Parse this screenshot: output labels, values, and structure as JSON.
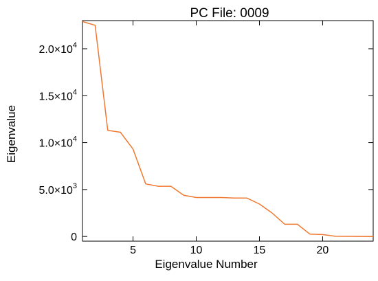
{
  "chart_data": {
    "type": "line",
    "title": "PC File: 0009",
    "xlabel": "Eigenvalue Number",
    "ylabel": "Eigenvalue",
    "xlim": [
      1,
      24
    ],
    "ylim": [
      -500,
      23000
    ],
    "x_ticks": [
      {
        "value": 5,
        "label": "5"
      },
      {
        "value": 10,
        "label": "10"
      },
      {
        "value": 15,
        "label": "15"
      },
      {
        "value": 20,
        "label": "20"
      }
    ],
    "y_ticks": [
      {
        "value": 0,
        "mantissa": "0",
        "exponent": ""
      },
      {
        "value": 5000,
        "mantissa": "5.0×10",
        "exponent": "3"
      },
      {
        "value": 10000,
        "mantissa": "1.0×10",
        "exponent": "4"
      },
      {
        "value": 15000,
        "mantissa": "1.5×10",
        "exponent": "4"
      },
      {
        "value": 20000,
        "mantissa": "2.0×10",
        "exponent": "4"
      }
    ],
    "grid": false,
    "series": [
      {
        "color": "#f07830",
        "x": [
          1,
          2,
          3,
          4,
          5,
          6,
          7,
          8,
          9,
          10,
          11,
          12,
          13,
          14,
          15,
          16,
          17,
          18,
          19,
          20,
          21,
          22,
          23,
          24
        ],
        "values": [
          22900,
          22500,
          11300,
          11100,
          9300,
          5600,
          5350,
          5350,
          4400,
          4150,
          4150,
          4150,
          4100,
          4100,
          3450,
          2500,
          1300,
          1300,
          250,
          200,
          20,
          10,
          5,
          0
        ]
      }
    ]
  }
}
